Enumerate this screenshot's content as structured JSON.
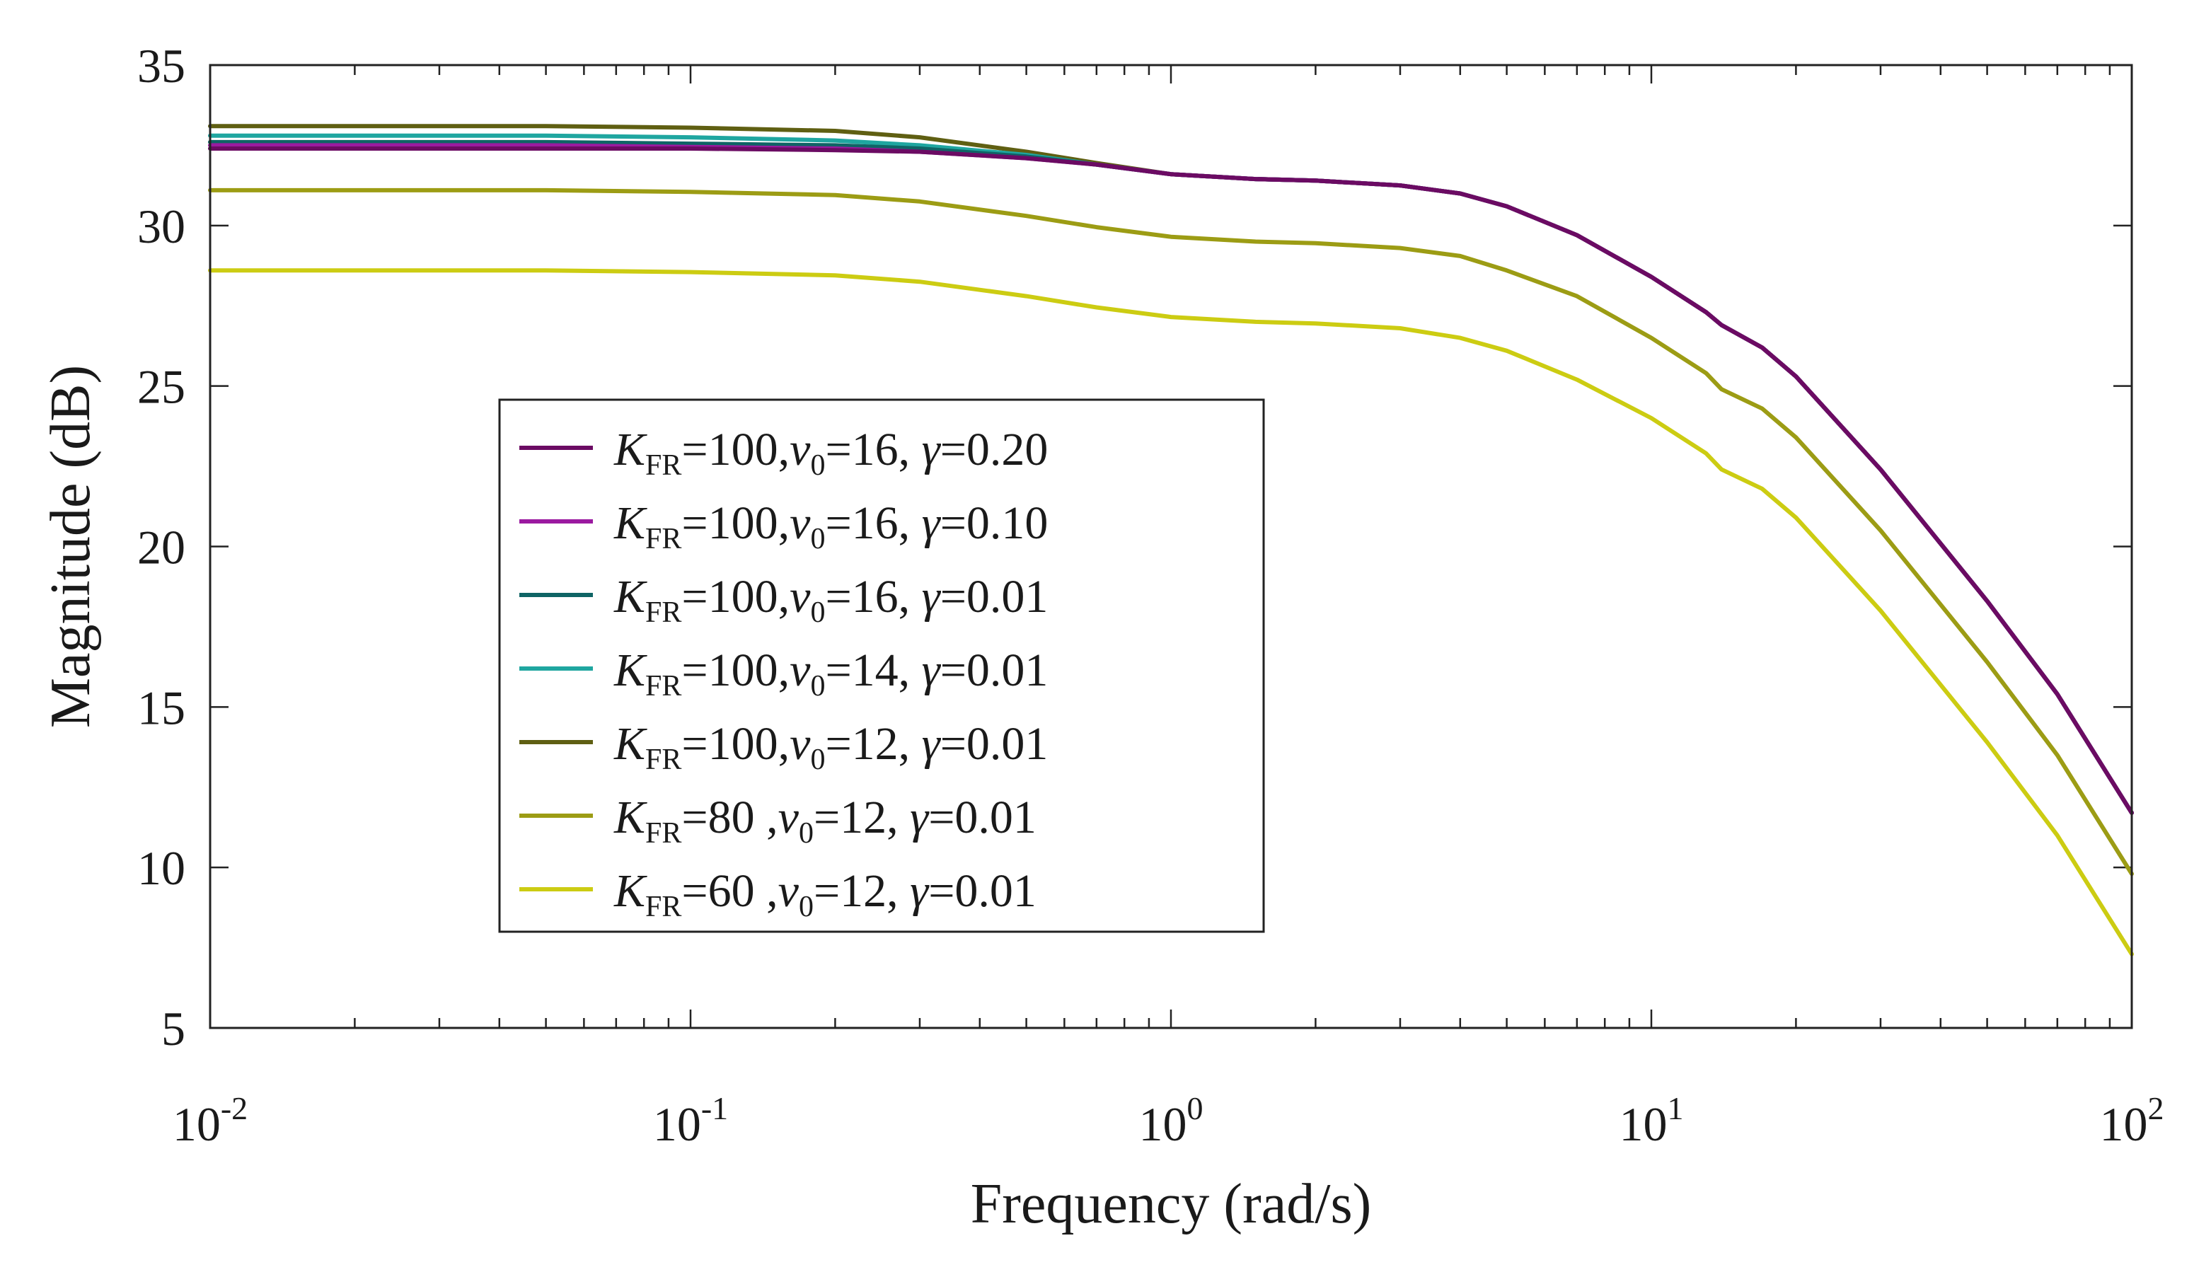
{
  "chart_data": {
    "type": "line",
    "xscale": "log",
    "xlabel": "Frequency (rad/s)",
    "ylabel": "Magnitude (dB)",
    "xlim": [
      0.01,
      100
    ],
    "ylim": [
      5,
      35
    ],
    "x_ticks": [
      {
        "base": "10",
        "exp": "-2",
        "value": 0.01
      },
      {
        "base": "10",
        "exp": "-1",
        "value": 0.1
      },
      {
        "base": "10",
        "exp": "0",
        "value": 1
      },
      {
        "base": "10",
        "exp": "1",
        "value": 10
      },
      {
        "base": "10",
        "exp": "2",
        "value": 100
      }
    ],
    "y_ticks": [
      "5",
      "10",
      "15",
      "20",
      "25",
      "30",
      "35"
    ],
    "legend_position": "center-left",
    "grid": false,
    "series": [
      {
        "label": {
          "k": "K",
          "sub1": "FR",
          "pre": "=100,",
          "v": "v",
          "sub2": "0",
          "post": "=16, ",
          "g": "γ",
          "tail": "=0.20"
        },
        "color": "#6b0b63",
        "points": [
          [
            0.01,
            32.4
          ],
          [
            0.05,
            32.4
          ],
          [
            0.1,
            32.4
          ],
          [
            0.2,
            32.35
          ],
          [
            0.3,
            32.3
          ],
          [
            0.5,
            32.1
          ],
          [
            0.7,
            31.9
          ],
          [
            1,
            31.6
          ],
          [
            1.5,
            31.45
          ],
          [
            2,
            31.4
          ],
          [
            3,
            31.25
          ],
          [
            4,
            31.0
          ],
          [
            5,
            30.6
          ],
          [
            7,
            29.7
          ],
          [
            10,
            28.4
          ],
          [
            13,
            27.3
          ],
          [
            14,
            26.9
          ],
          [
            17,
            26.2
          ],
          [
            20,
            25.3
          ],
          [
            30,
            22.4
          ],
          [
            50,
            18.3
          ],
          [
            70,
            15.4
          ],
          [
            100,
            11.7
          ]
        ]
      },
      {
        "label": {
          "k": "K",
          "sub1": "FR",
          "pre": "=100,",
          "v": "v",
          "sub2": "0",
          "post": "=16, ",
          "g": "γ",
          "tail": "=0.10"
        },
        "color": "#9b1aa0",
        "points": [
          [
            0.01,
            32.5
          ],
          [
            0.05,
            32.5
          ],
          [
            0.1,
            32.45
          ],
          [
            0.2,
            32.4
          ],
          [
            0.3,
            32.3
          ],
          [
            0.5,
            32.1
          ],
          [
            0.7,
            31.9
          ],
          [
            1,
            31.6
          ],
          [
            1.5,
            31.45
          ],
          [
            2,
            31.4
          ],
          [
            3,
            31.25
          ],
          [
            4,
            31.0
          ],
          [
            5,
            30.6
          ],
          [
            7,
            29.7
          ],
          [
            10,
            28.4
          ],
          [
            13,
            27.3
          ],
          [
            14,
            26.9
          ],
          [
            17,
            26.2
          ],
          [
            20,
            25.3
          ],
          [
            30,
            22.4
          ],
          [
            50,
            18.3
          ],
          [
            70,
            15.4
          ],
          [
            100,
            11.7
          ]
        ]
      },
      {
        "label": {
          "k": "K",
          "sub1": "FR",
          "pre": "=100,",
          "v": "v",
          "sub2": "0",
          "post": "=16, ",
          "g": "γ",
          "tail": "=0.01"
        },
        "color": "#0f6465",
        "points": [
          [
            0.01,
            32.6
          ],
          [
            0.05,
            32.6
          ],
          [
            0.1,
            32.55
          ],
          [
            0.2,
            32.5
          ],
          [
            0.3,
            32.4
          ],
          [
            0.5,
            32.15
          ],
          [
            0.7,
            31.9
          ],
          [
            1,
            31.6
          ],
          [
            1.5,
            31.45
          ],
          [
            2,
            31.4
          ],
          [
            3,
            31.25
          ],
          [
            4,
            31.0
          ],
          [
            5,
            30.6
          ],
          [
            7,
            29.7
          ],
          [
            10,
            28.4
          ],
          [
            13,
            27.3
          ],
          [
            14,
            26.9
          ],
          [
            17,
            26.2
          ],
          [
            20,
            25.3
          ],
          [
            30,
            22.4
          ],
          [
            50,
            18.3
          ],
          [
            70,
            15.4
          ],
          [
            100,
            11.7
          ]
        ]
      },
      {
        "label": {
          "k": "K",
          "sub1": "FR",
          "pre": "=100,",
          "v": "v",
          "sub2": "0",
          "post": "=14, ",
          "g": "γ",
          "tail": "=0.01"
        },
        "color": "#1fa6a0",
        "points": [
          [
            0.01,
            32.8
          ],
          [
            0.05,
            32.8
          ],
          [
            0.1,
            32.75
          ],
          [
            0.2,
            32.65
          ],
          [
            0.3,
            32.5
          ],
          [
            0.5,
            32.2
          ],
          [
            0.7,
            31.9
          ],
          [
            1,
            31.6
          ],
          [
            1.5,
            31.45
          ],
          [
            2,
            31.4
          ],
          [
            3,
            31.25
          ],
          [
            4,
            31.0
          ],
          [
            5,
            30.6
          ],
          [
            7,
            29.7
          ],
          [
            10,
            28.4
          ],
          [
            13,
            27.3
          ],
          [
            14,
            26.9
          ],
          [
            17,
            26.2
          ],
          [
            20,
            25.3
          ],
          [
            30,
            22.4
          ],
          [
            50,
            18.3
          ],
          [
            70,
            15.4
          ],
          [
            100,
            11.7
          ]
        ]
      },
      {
        "label": {
          "k": "K",
          "sub1": "FR",
          "pre": "=100,",
          "v": "v",
          "sub2": "0",
          "post": "=12, ",
          "g": "γ",
          "tail": "=0.01"
        },
        "color": "#5f5f12",
        "points": [
          [
            0.01,
            33.1
          ],
          [
            0.05,
            33.1
          ],
          [
            0.1,
            33.05
          ],
          [
            0.2,
            32.95
          ],
          [
            0.3,
            32.75
          ],
          [
            0.5,
            32.3
          ],
          [
            0.7,
            31.95
          ],
          [
            1,
            31.6
          ],
          [
            1.5,
            31.45
          ],
          [
            2,
            31.4
          ],
          [
            3,
            31.25
          ],
          [
            4,
            31.0
          ],
          [
            5,
            30.6
          ],
          [
            7,
            29.7
          ],
          [
            10,
            28.4
          ],
          [
            13,
            27.3
          ],
          [
            14,
            26.9
          ],
          [
            17,
            26.2
          ],
          [
            20,
            25.3
          ],
          [
            30,
            22.4
          ],
          [
            50,
            18.3
          ],
          [
            70,
            15.4
          ],
          [
            100,
            11.7
          ]
        ]
      },
      {
        "label": {
          "k": "K",
          "sub1": "FR",
          "pre": "=80  ,",
          "v": "v",
          "sub2": "0",
          "post": "=12, ",
          "g": "γ",
          "tail": "=0.01"
        },
        "color": "#9c9c14",
        "points": [
          [
            0.01,
            31.1
          ],
          [
            0.05,
            31.1
          ],
          [
            0.1,
            31.05
          ],
          [
            0.2,
            30.95
          ],
          [
            0.3,
            30.75
          ],
          [
            0.5,
            30.3
          ],
          [
            0.7,
            29.95
          ],
          [
            1,
            29.65
          ],
          [
            1.5,
            29.5
          ],
          [
            2,
            29.45
          ],
          [
            3,
            29.3
          ],
          [
            4,
            29.05
          ],
          [
            5,
            28.6
          ],
          [
            7,
            27.8
          ],
          [
            10,
            26.5
          ],
          [
            13,
            25.4
          ],
          [
            14,
            24.9
          ],
          [
            17,
            24.3
          ],
          [
            20,
            23.4
          ],
          [
            30,
            20.5
          ],
          [
            50,
            16.4
          ],
          [
            70,
            13.5
          ],
          [
            100,
            9.8
          ]
        ]
      },
      {
        "label": {
          "k": "K",
          "sub1": "FR",
          "pre": "=60  ,",
          "v": "v",
          "sub2": "0",
          "post": "=12, ",
          "g": "γ",
          "tail": "=0.01"
        },
        "color": "#cccc12",
        "points": [
          [
            0.01,
            28.6
          ],
          [
            0.05,
            28.6
          ],
          [
            0.1,
            28.55
          ],
          [
            0.2,
            28.45
          ],
          [
            0.3,
            28.25
          ],
          [
            0.5,
            27.8
          ],
          [
            0.7,
            27.45
          ],
          [
            1,
            27.15
          ],
          [
            1.5,
            27.0
          ],
          [
            2,
            26.95
          ],
          [
            3,
            26.8
          ],
          [
            4,
            26.5
          ],
          [
            5,
            26.1
          ],
          [
            7,
            25.2
          ],
          [
            10,
            24.0
          ],
          [
            13,
            22.9
          ],
          [
            14,
            22.4
          ],
          [
            17,
            21.8
          ],
          [
            20,
            20.9
          ],
          [
            30,
            18.0
          ],
          [
            50,
            13.9
          ],
          [
            70,
            11.0
          ],
          [
            100,
            7.3
          ]
        ]
      }
    ]
  }
}
